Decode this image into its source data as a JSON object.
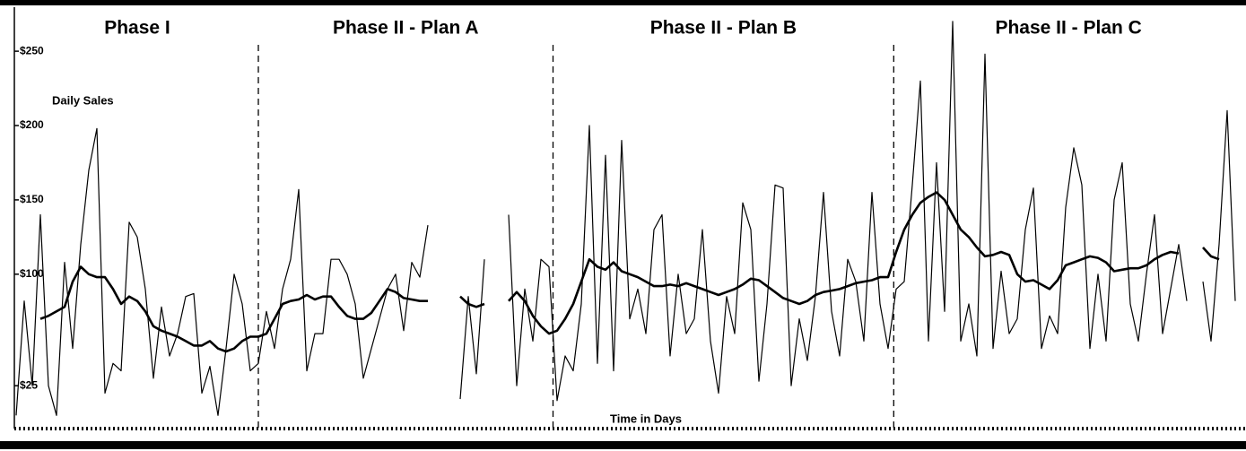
{
  "chart_data": {
    "type": "line",
    "y_label": "Daily Sales",
    "x_label": "Time in Days",
    "phases": [
      "Phase I",
      "Phase II - Plan A",
      "Phase II - Plan B",
      "Phase II - Plan C"
    ],
    "dividers": [
      30,
      66.5,
      108.7
    ],
    "x": [
      0,
      1,
      2,
      3,
      4,
      5,
      6,
      7,
      8,
      9,
      10,
      11,
      12,
      13,
      14,
      15,
      16,
      17,
      18,
      19,
      20,
      21,
      22,
      23,
      24,
      25,
      26,
      27,
      28,
      29,
      30,
      31,
      32,
      33,
      34,
      35,
      36,
      37,
      38,
      39,
      40,
      41,
      42,
      43,
      44,
      45,
      46,
      47,
      48,
      49,
      50,
      51,
      52,
      53,
      54,
      55,
      56,
      57,
      58,
      59,
      60,
      61,
      62,
      63,
      64,
      65,
      66,
      67,
      68,
      69,
      70,
      71,
      72,
      73,
      74,
      75,
      76,
      77,
      78,
      79,
      80,
      81,
      82,
      83,
      84,
      85,
      86,
      87,
      88,
      89,
      90,
      91,
      92,
      93,
      94,
      95,
      96,
      97,
      98,
      99,
      100,
      101,
      102,
      103,
      104,
      105,
      106,
      107,
      108,
      109,
      110,
      111,
      112,
      113,
      114,
      115,
      116,
      117,
      118,
      119,
      120,
      121,
      122,
      123,
      124,
      125,
      126,
      127,
      128,
      129,
      130,
      131,
      132,
      133,
      134,
      135,
      136,
      137,
      138,
      139,
      140,
      141,
      142,
      143,
      144,
      145,
      146,
      147,
      148,
      149,
      150,
      151
    ],
    "xlim": [
      0,
      152
    ],
    "ylim": [
      4,
      276
    ],
    "yticks": [
      {
        "value": 25,
        "label": "$25"
      },
      {
        "value": 100,
        "label": "$100"
      },
      {
        "value": 150,
        "label": "$150"
      },
      {
        "value": 200,
        "label": "$200"
      },
      {
        "value": 250,
        "label": "$250"
      }
    ],
    "series": [
      {
        "color": "#000000",
        "width": 1.2,
        "values": [
          5,
          82,
          25,
          140,
          25,
          5,
          108,
          50,
          120,
          170,
          198,
          20,
          40,
          35,
          135,
          125,
          90,
          30,
          78,
          45,
          60,
          85,
          87,
          20,
          38,
          5,
          50,
          100,
          80,
          35,
          40,
          75,
          50,
          90,
          110,
          157,
          35,
          60,
          60,
          110,
          110,
          100,
          80,
          30,
          50,
          70,
          90,
          100,
          62,
          108,
          98,
          133,
          null,
          null,
          null,
          16,
          85,
          33,
          110,
          null,
          null,
          140,
          25,
          90,
          55,
          110,
          105,
          15,
          45,
          35,
          80,
          200,
          40,
          180,
          35,
          190,
          70,
          90,
          60,
          130,
          140,
          45,
          100,
          60,
          70,
          130,
          55,
          20,
          85,
          60,
          148,
          130,
          28,
          80,
          160,
          158,
          25,
          70,
          42,
          85,
          155,
          75,
          45,
          110,
          95,
          55,
          155,
          80,
          50,
          90,
          95,
          160,
          230,
          55,
          175,
          75,
          270,
          55,
          80,
          45,
          248,
          50,
          102,
          60,
          70,
          130,
          158,
          50,
          72,
          60,
          145,
          185,
          160,
          50,
          100,
          55,
          150,
          175,
          80,
          55,
          100,
          140,
          60,
          90,
          120,
          82,
          null,
          95,
          55,
          120,
          210,
          82
        ]
      },
      {
        "color": "#000000",
        "width": 2.6,
        "values": [
          null,
          null,
          null,
          70,
          72,
          75,
          78,
          95,
          105,
          100,
          98,
          98,
          90,
          80,
          85,
          82,
          75,
          65,
          62,
          60,
          58,
          55,
          52,
          52,
          55,
          50,
          48,
          50,
          55,
          58,
          58,
          60,
          70,
          80,
          82,
          83,
          86,
          83,
          85,
          85,
          78,
          72,
          70,
          70,
          74,
          82,
          90,
          88,
          84,
          83,
          82,
          82,
          null,
          null,
          null,
          85,
          80,
          78,
          80,
          null,
          null,
          82,
          88,
          82,
          72,
          65,
          60,
          62,
          70,
          80,
          95,
          110,
          105,
          103,
          108,
          102,
          100,
          98,
          95,
          92,
          92,
          93,
          92,
          94,
          92,
          90,
          88,
          86,
          88,
          90,
          93,
          97,
          96,
          92,
          88,
          84,
          82,
          80,
          82,
          86,
          88,
          89,
          90,
          92,
          94,
          95,
          96,
          98,
          98,
          115,
          130,
          140,
          148,
          152,
          155,
          150,
          140,
          130,
          125,
          118,
          112,
          113,
          115,
          113,
          100,
          95,
          96,
          93,
          90,
          96,
          106,
          108,
          110,
          112,
          111,
          108,
          102,
          103,
          104,
          104,
          106,
          110,
          113,
          115,
          114,
          null,
          null,
          118,
          112,
          110,
          null,
          null
        ]
      }
    ]
  }
}
